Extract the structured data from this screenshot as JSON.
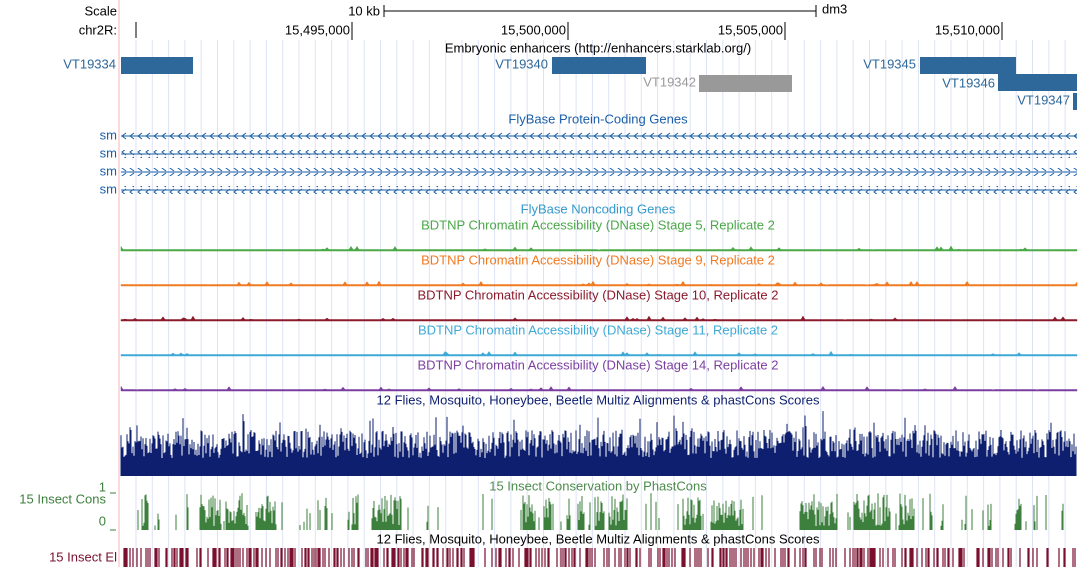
{
  "header": {
    "scale_label": "Scale",
    "scale_bar": "10 kb",
    "assembly": "dm3",
    "chrom": "chr2R:",
    "positions": [
      "15,495,000",
      "15,500,000",
      "15,505,000",
      "15,510,000"
    ]
  },
  "enhancers": {
    "title": "Embryonic enhancers (http://enhancers.starklab.org/)",
    "items": [
      "VT19334",
      "VT19340",
      "VT19342",
      "VT19345",
      "VT19346",
      "VT19347"
    ]
  },
  "genes": {
    "title": "FlyBase Protein-Coding Genes",
    "rows": [
      "sm",
      "sm",
      "sm",
      "sm"
    ]
  },
  "noncoding": {
    "title": "FlyBase Noncoding Genes"
  },
  "dnase": [
    "BDTNP Chromatin Accessibility (DNase) Stage 5, Replicate 2",
    "BDTNP Chromatin Accessibility (DNase) Stage 9, Replicate 2",
    "BDTNP Chromatin Accessibility (DNase) Stage 10, Replicate 2",
    "BDTNP Chromatin Accessibility (DNase) Stage 11, Replicate 2",
    "BDTNP Chromatin Accessibility (DNase) Stage 14, Replicate 2"
  ],
  "multiz": {
    "title": "12 Flies, Mosquito, Honeybee, Beetle Multiz Alignments & phastCons Scores"
  },
  "phastcons": {
    "title": "15 Insect Conservation by PhastCons",
    "side_label": "15 Insect Cons",
    "axis_top": "1",
    "axis_bottom": "0"
  },
  "elements": {
    "title": "12 Flies, Mosquito, Honeybee, Beetle Multiz Alignments & phastCons Scores",
    "side_label": "15 Insect El"
  }
}
